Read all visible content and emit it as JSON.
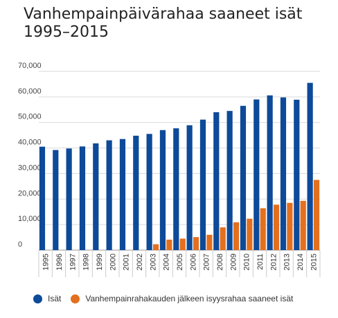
{
  "chart_data": {
    "type": "bar",
    "title": "Vanhempainpäivärahaa saaneet isät",
    "subtitle": "1995–2015",
    "xlabel": "",
    "ylabel": "",
    "ylim": [
      0,
      70000
    ],
    "yticks": [
      0,
      10000,
      20000,
      30000,
      40000,
      50000,
      60000,
      70000
    ],
    "ytick_labels": [
      "0",
      "10,000",
      "20,000",
      "30,000",
      "40,000",
      "50,000",
      "60,000",
      "70,000"
    ],
    "grid": true,
    "legend_position": "bottom",
    "categories": [
      "1995",
      "1996",
      "1997",
      "1998",
      "1999",
      "2000",
      "2001",
      "2002",
      "2003",
      "2004",
      "2005",
      "2006",
      "2007",
      "2008",
      "2009",
      "2010",
      "2011",
      "2012",
      "2013",
      "2014",
      "2015"
    ],
    "series": [
      {
        "name": "Isät",
        "color": "#0d4a99",
        "values": [
          40500,
          39200,
          39800,
          40600,
          41800,
          43000,
          43500,
          44800,
          45500,
          47000,
          47700,
          48900,
          51100,
          54000,
          54500,
          56500,
          59000,
          60600,
          59800,
          58900,
          65500
        ]
      },
      {
        "name": "Vanhempainrahakauden jälkeen isyysrahaa saaneet isät",
        "color": "#e3701e",
        "values": [
          0,
          0,
          0,
          0,
          0,
          0,
          0,
          0,
          2300,
          4100,
          4500,
          5100,
          6000,
          8900,
          10900,
          12300,
          16400,
          17800,
          18500,
          19300,
          27500
        ]
      }
    ]
  }
}
